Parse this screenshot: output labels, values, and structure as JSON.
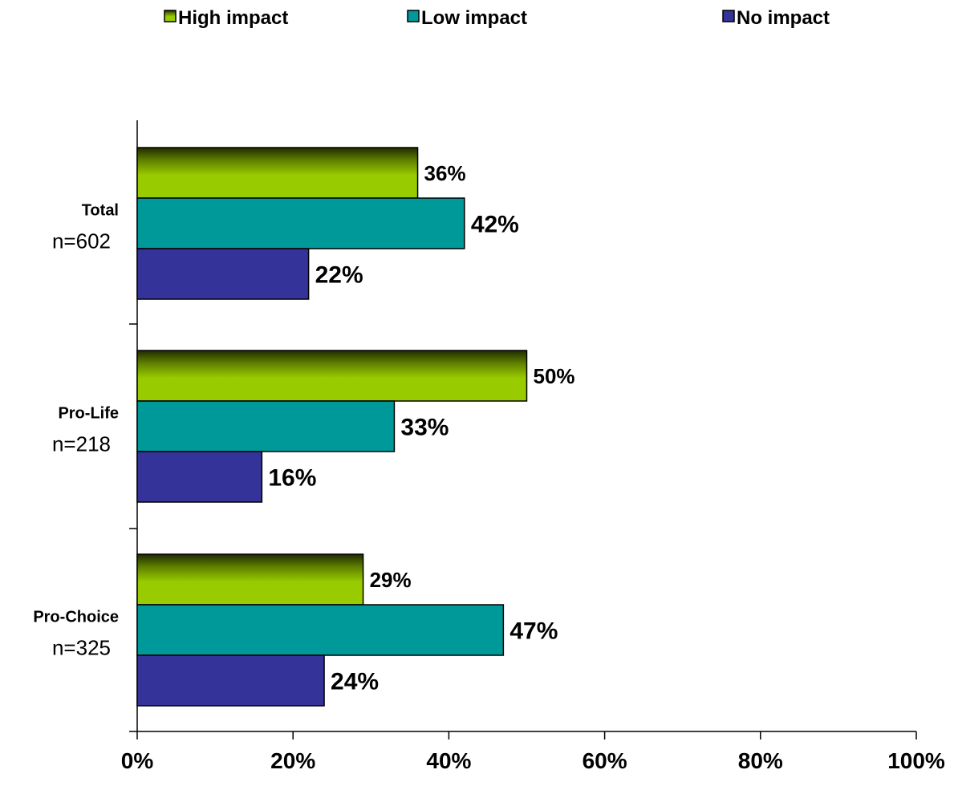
{
  "chart_data": {
    "type": "bar",
    "orientation": "horizontal",
    "categories": [
      {
        "label": "Total",
        "sublabel": "n=602"
      },
      {
        "label": "Pro-Life",
        "sublabel": "n=218"
      },
      {
        "label": "Pro-Choice",
        "sublabel": "n=325"
      }
    ],
    "series": [
      {
        "name": "High impact",
        "color": "#99cc00",
        "values": [
          36,
          50,
          29
        ],
        "labels": [
          "36%",
          "50%",
          "29%"
        ]
      },
      {
        "name": "Low impact",
        "color": "#009999",
        "values": [
          42,
          33,
          47
        ],
        "labels": [
          "42%",
          "33%",
          "47%"
        ]
      },
      {
        "name": "No impact",
        "color": "#333399",
        "values": [
          22,
          16,
          24
        ],
        "labels": [
          "22%",
          "16%",
          "24%"
        ]
      }
    ],
    "xlim": [
      0,
      100
    ],
    "x_ticks": [
      0,
      20,
      40,
      60,
      80,
      100
    ],
    "x_tick_labels": [
      "0%",
      "20%",
      "40%",
      "60%",
      "80%",
      "100%"
    ],
    "grid": false,
    "legend_position": "top"
  }
}
